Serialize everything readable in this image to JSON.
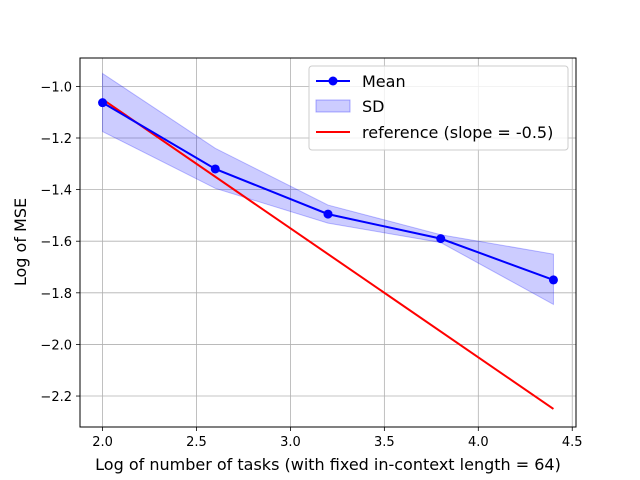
{
  "chart_data": {
    "type": "line",
    "xlabel": "Log of number of tasks (with fixed in-context length = 64)",
    "ylabel": "Log of MSE",
    "xlim": [
      1.88,
      4.52
    ],
    "ylim": [
      -2.32,
      -0.89
    ],
    "x_ticks": [
      2.0,
      2.5,
      3.0,
      3.5,
      4.0,
      4.5
    ],
    "x_tick_labels": [
      "2.0",
      "2.5",
      "3.0",
      "3.5",
      "4.0",
      "4.5"
    ],
    "y_ticks": [
      -1.0,
      -1.2,
      -1.4,
      -1.6,
      -1.8,
      -2.0,
      -2.2
    ],
    "y_tick_labels": [
      "−1.0",
      "−1.2",
      "−1.4",
      "−1.6",
      "−1.8",
      "−2.0",
      "−2.2"
    ],
    "grid": true,
    "legend_position": "top-right",
    "series": [
      {
        "name": "Mean",
        "kind": "line-markers",
        "color": "#0000ff",
        "x": [
          2.0,
          2.6,
          3.2,
          3.8,
          4.4
        ],
        "y": [
          -1.063,
          -1.32,
          -1.495,
          -1.59,
          -1.75
        ]
      },
      {
        "name": "SD",
        "kind": "band",
        "color": "#0000ff",
        "opacity": 0.2,
        "x": [
          2.0,
          2.6,
          3.2,
          3.8,
          4.4
        ],
        "upper": [
          -0.95,
          -1.24,
          -1.46,
          -1.575,
          -1.65
        ],
        "lower": [
          -1.175,
          -1.395,
          -1.53,
          -1.605,
          -1.845
        ]
      },
      {
        "name": "reference (slope = -0.5)",
        "kind": "line",
        "color": "#ff0000",
        "x": [
          2.0,
          4.4
        ],
        "y": [
          -1.05,
          -2.25
        ]
      }
    ]
  }
}
